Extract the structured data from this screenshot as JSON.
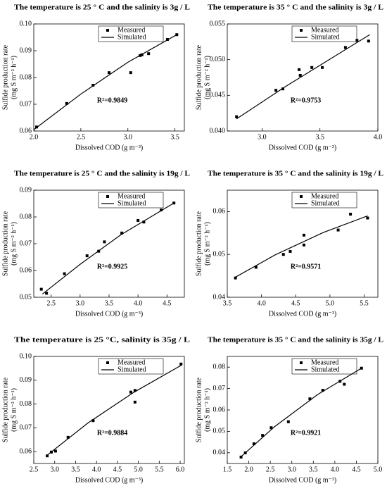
{
  "chart_data": [
    {
      "type": "scatter",
      "title": "The temperature is 25 ° C and the salinity is 3g / L",
      "x_label": "Dissolved COD (g m⁻³)",
      "y_label": [
        "Sulfide production rate",
        "(mg S m⁻² h⁻¹)"
      ],
      "annotation": "R²=0.9849",
      "xlim": [
        2.0,
        3.6
      ],
      "xticks": [
        {
          "value": 2.0,
          "label": "2.0"
        },
        2.5,
        {
          "value": 3.0,
          "label": "3.0"
        },
        3.5
      ],
      "ylim": [
        0.06,
        0.1
      ],
      "yticks": [
        0.06,
        0.07,
        0.08,
        0.09,
        {
          "value": 0.1,
          "label": "0.10"
        }
      ],
      "series": [
        {
          "name": "Measured",
          "color": "#000000",
          "marker": "square",
          "x": [
            2.03,
            2.35,
            2.63,
            2.8,
            3.03,
            3.13,
            3.15,
            3.22,
            3.42,
            3.52
          ],
          "values": [
            0.0615,
            0.0703,
            0.0771,
            0.0818,
            0.0818,
            0.0882,
            0.0885,
            0.0889,
            0.0942,
            0.096
          ]
        },
        {
          "name": "Simulated",
          "color": "#000000",
          "marker": "line",
          "x": [
            2.0,
            2.5,
            3.0,
            3.53
          ],
          "values": [
            0.0605,
            0.0738,
            0.0857,
            0.0962
          ]
        }
      ]
    },
    {
      "type": "scatter",
      "title": "The temperature is 35 ° C and the salinity is 3g / L",
      "x_label": "Dissolved COD (g m⁻³)",
      "y_label": [
        "Sulfide production rate",
        "(mg S m⁻² h⁻¹)"
      ],
      "annotation": "R²=0.9753",
      "xlim": [
        2.7,
        4.0
      ],
      "xticks": [
        {
          "value": 3.0,
          "label": "3.0"
        },
        3.5,
        {
          "value": 4.0,
          "label": "4.0"
        }
      ],
      "ylim": [
        0.04,
        0.055
      ],
      "yticks": [
        {
          "value": 0.04,
          "label": "0.040"
        },
        0.045,
        {
          "value": 0.05,
          "label": "0.050"
        },
        0.055
      ],
      "series": [
        {
          "name": "Measured",
          "color": "#000000",
          "marker": "square",
          "x": [
            2.78,
            3.12,
            3.18,
            3.32,
            3.33,
            3.43,
            3.52,
            3.72,
            3.82,
            3.92
          ],
          "values": [
            0.042,
            0.0457,
            0.0459,
            0.0486,
            0.0478,
            0.0489,
            0.0489,
            0.0517,
            0.0527,
            0.0526
          ]
        },
        {
          "name": "Simulated",
          "color": "#000000",
          "marker": "line",
          "x": [
            2.78,
            3.2,
            3.6,
            3.93
          ],
          "values": [
            0.0417,
            0.0462,
            0.0502,
            0.0535
          ]
        }
      ]
    },
    {
      "type": "scatter",
      "title": "The temperature is 25 ° C and the salinity is 19g / L",
      "x_label": "Dissolved COD (g m⁻³)",
      "y_label": [
        "Sulfide production rate",
        "(mg S m⁻² h⁻¹)"
      ],
      "annotation": "R²=0.9925",
      "xlim": [
        2.2,
        4.8
      ],
      "xticks": [
        2.5,
        {
          "value": 3.0,
          "label": "3.0"
        },
        3.5,
        {
          "value": 4.0,
          "label": "4.0"
        },
        4.5
      ],
      "ylim": [
        0.05,
        0.09
      ],
      "yticks": [
        0.05,
        0.06,
        0.07,
        0.08,
        0.09
      ],
      "series": [
        {
          "name": "Measured",
          "color": "#000000",
          "marker": "square",
          "x": [
            2.33,
            2.42,
            2.73,
            3.12,
            3.32,
            3.42,
            3.72,
            4.0,
            4.1,
            4.4,
            4.62
          ],
          "values": [
            0.053,
            0.0515,
            0.0588,
            0.0655,
            0.0672,
            0.0707,
            0.074,
            0.0787,
            0.0781,
            0.0826,
            0.0852
          ]
        },
        {
          "name": "Simulated",
          "color": "#000000",
          "marker": "line",
          "x": [
            2.35,
            3.0,
            3.7,
            4.62
          ],
          "values": [
            0.0512,
            0.0623,
            0.0733,
            0.0852
          ]
        }
      ]
    },
    {
      "type": "scatter",
      "title": "The temperature is 35 ° C and the salinity is 19g / L",
      "x_label": "Dissolved COD (g m⁻³)",
      "y_label": [
        "Sulfide production rate",
        "(mg S m⁻² h⁻¹)"
      ],
      "annotation": "R²=0.9571",
      "xlim": [
        3.5,
        5.7
      ],
      "xticks": [
        3.5,
        {
          "value": 4.0,
          "label": "4.0"
        },
        4.5,
        {
          "value": 5.0,
          "label": "5.0"
        },
        5.5
      ],
      "ylim": [
        0.04,
        0.065
      ],
      "yticks": [
        0.04,
        0.05,
        0.06
      ],
      "series": [
        {
          "name": "Measured",
          "color": "#000000",
          "marker": "square",
          "x": [
            3.62,
            3.92,
            4.32,
            4.42,
            4.62,
            4.62,
            5.12,
            5.3,
            5.55
          ],
          "values": [
            0.0445,
            0.047,
            0.05,
            0.0507,
            0.0522,
            0.0545,
            0.0557,
            0.0594,
            0.0585
          ]
        },
        {
          "name": "Simulated",
          "color": "#000000",
          "marker": "line",
          "x": [
            3.62,
            4.2,
            4.9,
            5.55
          ],
          "values": [
            0.0447,
            0.0499,
            0.0551,
            0.059
          ]
        }
      ]
    },
    {
      "type": "scatter",
      "title": "The temperature is 25 °C, salinity is 35g / L",
      "x_label": "Dissolved COD (g m⁻³)",
      "y_label": [
        "Sulfide production rate",
        "(mg S m⁻² h⁻¹)"
      ],
      "annotation": "R²=0.9884",
      "xlim": [
        2.5,
        6.1
      ],
      "xticks": [
        2.5,
        {
          "value": 3.0,
          "label": "3.0"
        },
        3.5,
        {
          "value": 4.0,
          "label": "4.0"
        },
        4.5,
        {
          "value": 5.0,
          "label": "5.0"
        },
        5.5,
        {
          "value": 6.0,
          "label": "6.0"
        }
      ],
      "ylim": [
        0.055,
        0.1
      ],
      "yticks": [
        0.06,
        0.07,
        0.08,
        0.09,
        {
          "value": 0.1,
          "label": "0.10"
        }
      ],
      "series": [
        {
          "name": "Measured",
          "color": "#000000",
          "marker": "square",
          "x": [
            2.82,
            2.92,
            3.02,
            3.32,
            3.92,
            4.82,
            4.92,
            4.92,
            6.02
          ],
          "values": [
            0.0582,
            0.0598,
            0.0602,
            0.066,
            0.073,
            0.085,
            0.0857,
            0.0808,
            0.0968
          ]
        },
        {
          "name": "Simulated",
          "color": "#000000",
          "marker": "line",
          "x": [
            2.8,
            3.8,
            4.9,
            6.02
          ],
          "values": [
            0.0582,
            0.0721,
            0.085,
            0.0962
          ]
        }
      ]
    },
    {
      "type": "scatter",
      "title": "The temperature is 35 ° C and the salinity is 35g / L",
      "x_label": "Dissolved COD (g m⁻³)",
      "y_label": [
        "Sulfide production rate",
        "(mg S m⁻² h⁻¹)"
      ],
      "annotation": "R²=0.9921",
      "xlim": [
        1.5,
        5.0
      ],
      "xticks": [
        1.5,
        {
          "value": 2.0,
          "label": "2.0"
        },
        2.5,
        {
          "value": 3.0,
          "label": "3.0"
        },
        3.5,
        {
          "value": 4.0,
          "label": "4.0"
        },
        4.5,
        {
          "value": 5.0,
          "label": "5.0"
        }
      ],
      "ylim": [
        0.035,
        0.085
      ],
      "yticks": [
        0.04,
        0.05,
        0.06,
        0.07,
        0.08
      ],
      "series": [
        {
          "name": "Measured",
          "color": "#000000",
          "marker": "square",
          "x": [
            1.82,
            1.92,
            2.12,
            2.32,
            2.52,
            2.92,
            3.42,
            3.72,
            4.12,
            4.22,
            4.62
          ],
          "values": [
            0.038,
            0.04,
            0.0442,
            0.0481,
            0.0517,
            0.0545,
            0.0652,
            0.0692,
            0.0734,
            0.072,
            0.0795
          ]
        },
        {
          "name": "Simulated",
          "color": "#000000",
          "marker": "line",
          "x": [
            1.8,
            2.6,
            3.6,
            4.62
          ],
          "values": [
            0.0378,
            0.0522,
            0.0672,
            0.0795
          ]
        }
      ]
    }
  ]
}
